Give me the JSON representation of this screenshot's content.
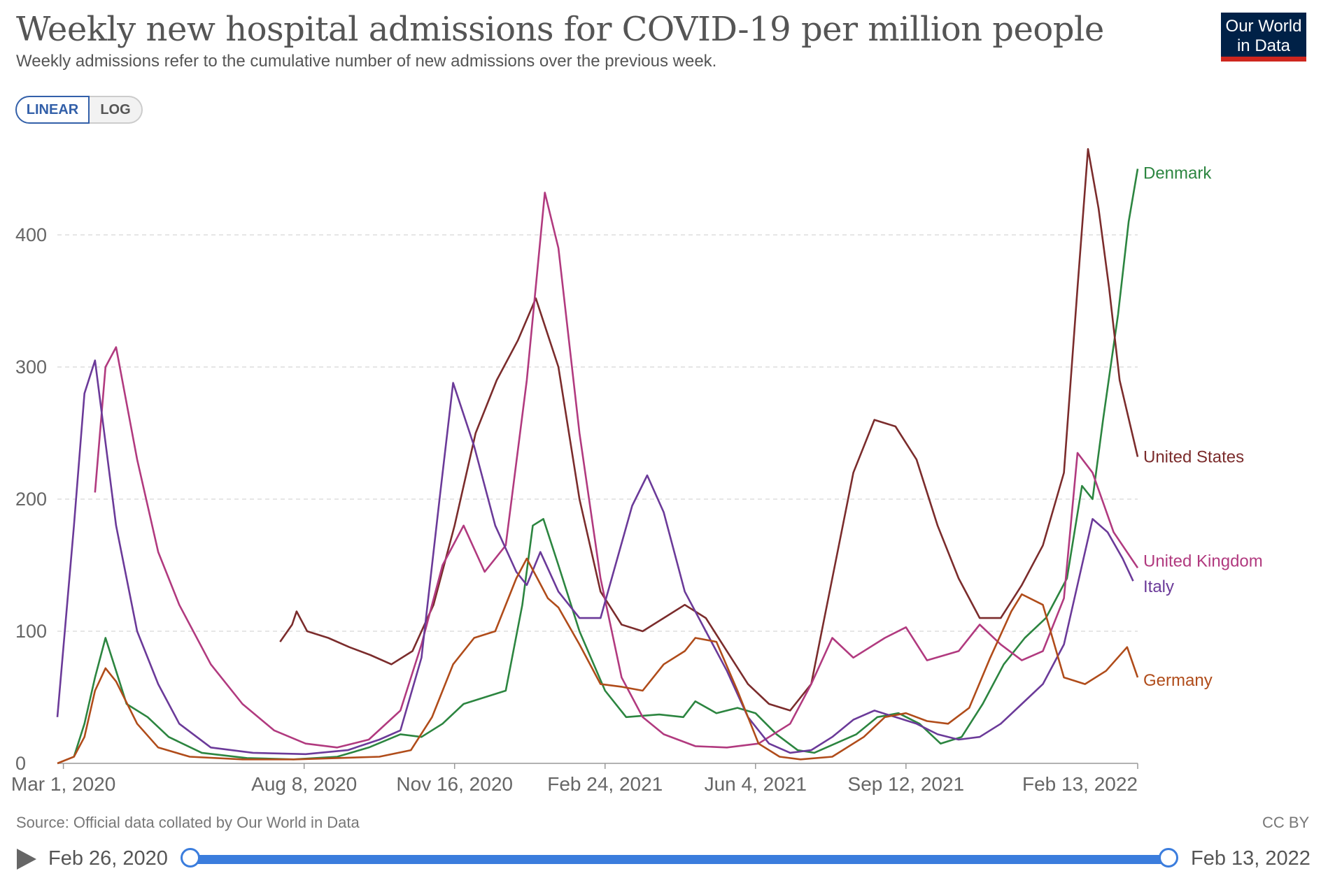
{
  "title": "Weekly new hospital admissions for COVID-19 per million people",
  "subtitle": "Weekly admissions refer to the cumulative number of new admissions over the previous week.",
  "logo": {
    "line1": "Our World",
    "line2": "in Data"
  },
  "scale_toggle": {
    "linear": "LINEAR",
    "log": "LOG",
    "selected": "LINEAR"
  },
  "source": "Source: Official data collated by Our World in Data",
  "license": "CC BY",
  "timeline": {
    "start": "Feb 26, 2020",
    "end": "Feb 13, 2022",
    "range_start": 0.0,
    "range_end": 1.0
  },
  "colors": {
    "grid": "#dddddd",
    "axis": "#999999",
    "tick_text": "#666666"
  },
  "chart_data": {
    "type": "line",
    "x_domain": [
      "2020-02-26",
      "2022-02-13"
    ],
    "ylim": [
      0,
      470
    ],
    "yticks": [
      0,
      100,
      200,
      300,
      400
    ],
    "xticks": [
      {
        "label": "Mar 1, 2020",
        "date": "2020-03-01"
      },
      {
        "label": "Aug 8, 2020",
        "date": "2020-08-08"
      },
      {
        "label": "Nov 16, 2020",
        "date": "2020-11-16"
      },
      {
        "label": "Feb 24, 2021",
        "date": "2021-02-24"
      },
      {
        "label": "Jun 4, 2021",
        "date": "2021-06-04"
      },
      {
        "label": "Sep 12, 2021",
        "date": "2021-09-12"
      },
      {
        "label": "Feb 13, 2022",
        "date": "2022-02-13"
      }
    ],
    "grid": true,
    "legend": "right (end labels)",
    "series": [
      {
        "name": "Denmark",
        "color": "#2c8540",
        "points": [
          [
            "2020-03-08",
            5
          ],
          [
            "2020-03-15",
            30
          ],
          [
            "2020-03-22",
            65
          ],
          [
            "2020-03-29",
            95
          ],
          [
            "2020-04-05",
            70
          ],
          [
            "2020-04-12",
            45
          ],
          [
            "2020-04-26",
            35
          ],
          [
            "2020-05-10",
            20
          ],
          [
            "2020-06-01",
            8
          ],
          [
            "2020-07-01",
            4
          ],
          [
            "2020-08-01",
            3
          ],
          [
            "2020-08-30",
            5
          ],
          [
            "2020-09-20",
            12
          ],
          [
            "2020-10-11",
            22
          ],
          [
            "2020-10-25",
            20
          ],
          [
            "2020-11-08",
            30
          ],
          [
            "2020-11-22",
            45
          ],
          [
            "2020-12-06",
            50
          ],
          [
            "2020-12-20",
            55
          ],
          [
            "2020-12-31",
            120
          ],
          [
            "2021-01-07",
            180
          ],
          [
            "2021-01-14",
            185
          ],
          [
            "2021-01-24",
            150
          ],
          [
            "2021-02-07",
            100
          ],
          [
            "2021-02-24",
            55
          ],
          [
            "2021-03-10",
            35
          ],
          [
            "2021-04-01",
            37
          ],
          [
            "2021-04-17",
            35
          ],
          [
            "2021-04-25",
            47
          ],
          [
            "2021-05-09",
            38
          ],
          [
            "2021-05-23",
            42
          ],
          [
            "2021-06-04",
            38
          ],
          [
            "2021-06-18",
            22
          ],
          [
            "2021-07-02",
            10
          ],
          [
            "2021-07-13",
            8
          ],
          [
            "2021-07-27",
            15
          ],
          [
            "2021-08-10",
            22
          ],
          [
            "2021-08-24",
            35
          ],
          [
            "2021-09-07",
            38
          ],
          [
            "2021-09-21",
            30
          ],
          [
            "2021-10-05",
            15
          ],
          [
            "2021-10-19",
            20
          ],
          [
            "2021-11-02",
            45
          ],
          [
            "2021-11-16",
            75
          ],
          [
            "2021-11-30",
            95
          ],
          [
            "2021-12-14",
            110
          ],
          [
            "2021-12-28",
            140
          ],
          [
            "2022-01-07",
            210
          ],
          [
            "2022-01-14",
            200
          ],
          [
            "2022-01-21",
            260
          ],
          [
            "2022-01-31",
            340
          ],
          [
            "2022-02-07",
            410
          ],
          [
            "2022-02-13",
            450
          ]
        ]
      },
      {
        "name": "United States",
        "color": "#7b2c2c",
        "points": [
          [
            "2020-07-23",
            92
          ],
          [
            "2020-07-31",
            105
          ],
          [
            "2020-08-03",
            115
          ],
          [
            "2020-08-10",
            100
          ],
          [
            "2020-08-24",
            95
          ],
          [
            "2020-09-07",
            88
          ],
          [
            "2020-09-21",
            82
          ],
          [
            "2020-10-05",
            75
          ],
          [
            "2020-10-19",
            85
          ],
          [
            "2020-11-02",
            120
          ],
          [
            "2020-11-16",
            180
          ],
          [
            "2020-11-30",
            250
          ],
          [
            "2020-12-14",
            290
          ],
          [
            "2020-12-28",
            320
          ],
          [
            "2021-01-09",
            352
          ],
          [
            "2021-01-24",
            300
          ],
          [
            "2021-02-07",
            200
          ],
          [
            "2021-02-21",
            130
          ],
          [
            "2021-03-07",
            105
          ],
          [
            "2021-03-21",
            100
          ],
          [
            "2021-04-04",
            110
          ],
          [
            "2021-04-18",
            120
          ],
          [
            "2021-05-02",
            110
          ],
          [
            "2021-05-16",
            85
          ],
          [
            "2021-05-30",
            60
          ],
          [
            "2021-06-13",
            45
          ],
          [
            "2021-06-27",
            40
          ],
          [
            "2021-07-11",
            60
          ],
          [
            "2021-07-25",
            140
          ],
          [
            "2021-08-08",
            220
          ],
          [
            "2021-08-22",
            260
          ],
          [
            "2021-09-05",
            255
          ],
          [
            "2021-09-19",
            230
          ],
          [
            "2021-10-03",
            180
          ],
          [
            "2021-10-17",
            140
          ],
          [
            "2021-10-31",
            110
          ],
          [
            "2021-11-14",
            110
          ],
          [
            "2021-11-28",
            135
          ],
          [
            "2021-12-12",
            165
          ],
          [
            "2021-12-26",
            220
          ],
          [
            "2022-01-04",
            360
          ],
          [
            "2022-01-11",
            465
          ],
          [
            "2022-01-18",
            420
          ],
          [
            "2022-01-25",
            360
          ],
          [
            "2022-02-01",
            290
          ],
          [
            "2022-02-13",
            232
          ]
        ]
      },
      {
        "name": "United Kingdom",
        "color": "#b13a7f",
        "points": [
          [
            "2020-03-22",
            205
          ],
          [
            "2020-03-29",
            300
          ],
          [
            "2020-04-05",
            315
          ],
          [
            "2020-04-19",
            230
          ],
          [
            "2020-05-03",
            160
          ],
          [
            "2020-05-17",
            120
          ],
          [
            "2020-06-07",
            75
          ],
          [
            "2020-06-28",
            45
          ],
          [
            "2020-07-19",
            25
          ],
          [
            "2020-08-09",
            15
          ],
          [
            "2020-08-30",
            12
          ],
          [
            "2020-09-20",
            18
          ],
          [
            "2020-10-11",
            40
          ],
          [
            "2020-10-25",
            90
          ],
          [
            "2020-11-08",
            150
          ],
          [
            "2020-11-22",
            180
          ],
          [
            "2020-12-06",
            145
          ],
          [
            "2020-12-20",
            165
          ],
          [
            "2021-01-03",
            290
          ],
          [
            "2021-01-15",
            432
          ],
          [
            "2021-01-24",
            390
          ],
          [
            "2021-02-07",
            250
          ],
          [
            "2021-02-21",
            140
          ],
          [
            "2021-03-07",
            65
          ],
          [
            "2021-03-21",
            35
          ],
          [
            "2021-04-04",
            22
          ],
          [
            "2021-04-25",
            13
          ],
          [
            "2021-05-16",
            12
          ],
          [
            "2021-06-06",
            15
          ],
          [
            "2021-06-27",
            30
          ],
          [
            "2021-07-11",
            60
          ],
          [
            "2021-07-25",
            95
          ],
          [
            "2021-08-08",
            80
          ],
          [
            "2021-08-29",
            95
          ],
          [
            "2021-09-12",
            103
          ],
          [
            "2021-09-26",
            78
          ],
          [
            "2021-10-17",
            85
          ],
          [
            "2021-10-31",
            105
          ],
          [
            "2021-11-14",
            90
          ],
          [
            "2021-11-28",
            78
          ],
          [
            "2021-12-12",
            85
          ],
          [
            "2021-12-26",
            125
          ],
          [
            "2022-01-04",
            235
          ],
          [
            "2022-01-14",
            220
          ],
          [
            "2022-01-28",
            175
          ],
          [
            "2022-02-13",
            148
          ]
        ]
      },
      {
        "name": "Italy",
        "color": "#6b3a99",
        "points": [
          [
            "2020-02-26",
            35
          ],
          [
            "2020-03-08",
            180
          ],
          [
            "2020-03-15",
            280
          ],
          [
            "2020-03-22",
            305
          ],
          [
            "2020-04-05",
            180
          ],
          [
            "2020-04-19",
            100
          ],
          [
            "2020-05-03",
            60
          ],
          [
            "2020-05-17",
            30
          ],
          [
            "2020-06-07",
            12
          ],
          [
            "2020-07-05",
            8
          ],
          [
            "2020-08-09",
            7
          ],
          [
            "2020-09-06",
            10
          ],
          [
            "2020-09-27",
            18
          ],
          [
            "2020-10-11",
            25
          ],
          [
            "2020-10-25",
            80
          ],
          [
            "2020-11-06",
            200
          ],
          [
            "2020-11-15",
            288
          ],
          [
            "2020-11-29",
            240
          ],
          [
            "2020-12-13",
            180
          ],
          [
            "2020-12-27",
            145
          ],
          [
            "2021-01-03",
            135
          ],
          [
            "2021-01-12",
            160
          ],
          [
            "2021-01-24",
            130
          ],
          [
            "2021-02-07",
            110
          ],
          [
            "2021-02-21",
            110
          ],
          [
            "2021-03-14",
            195
          ],
          [
            "2021-03-24",
            218
          ],
          [
            "2021-04-04",
            190
          ],
          [
            "2021-04-18",
            130
          ],
          [
            "2021-05-02",
            100
          ],
          [
            "2021-05-16",
            70
          ],
          [
            "2021-05-30",
            35
          ],
          [
            "2021-06-13",
            15
          ],
          [
            "2021-06-27",
            8
          ],
          [
            "2021-07-11",
            10
          ],
          [
            "2021-07-25",
            20
          ],
          [
            "2021-08-08",
            33
          ],
          [
            "2021-08-22",
            40
          ],
          [
            "2021-09-05",
            35
          ],
          [
            "2021-09-19",
            30
          ],
          [
            "2021-10-03",
            22
          ],
          [
            "2021-10-17",
            18
          ],
          [
            "2021-10-31",
            20
          ],
          [
            "2021-11-14",
            30
          ],
          [
            "2021-11-28",
            45
          ],
          [
            "2021-12-12",
            60
          ],
          [
            "2021-12-26",
            90
          ],
          [
            "2022-01-07",
            150
          ],
          [
            "2022-01-14",
            185
          ],
          [
            "2022-01-24",
            175
          ],
          [
            "2022-02-03",
            155
          ],
          [
            "2022-02-10",
            138
          ]
        ]
      },
      {
        "name": "Germany",
        "color": "#b04c1a",
        "points": [
          [
            "2020-02-26",
            0
          ],
          [
            "2020-03-08",
            5
          ],
          [
            "2020-03-15",
            20
          ],
          [
            "2020-03-22",
            55
          ],
          [
            "2020-03-29",
            72
          ],
          [
            "2020-04-05",
            62
          ],
          [
            "2020-04-19",
            30
          ],
          [
            "2020-05-03",
            12
          ],
          [
            "2020-05-24",
            5
          ],
          [
            "2020-06-28",
            3
          ],
          [
            "2020-08-02",
            3
          ],
          [
            "2020-08-30",
            4
          ],
          [
            "2020-09-27",
            5
          ],
          [
            "2020-10-18",
            10
          ],
          [
            "2020-11-01",
            35
          ],
          [
            "2020-11-15",
            75
          ],
          [
            "2020-11-29",
            95
          ],
          [
            "2020-12-13",
            100
          ],
          [
            "2020-12-27",
            140
          ],
          [
            "2021-01-03",
            155
          ],
          [
            "2021-01-10",
            140
          ],
          [
            "2021-01-17",
            125
          ],
          [
            "2021-01-24",
            118
          ],
          [
            "2021-02-07",
            90
          ],
          [
            "2021-02-21",
            60
          ],
          [
            "2021-03-07",
            58
          ],
          [
            "2021-03-21",
            55
          ],
          [
            "2021-04-04",
            75
          ],
          [
            "2021-04-18",
            85
          ],
          [
            "2021-04-25",
            95
          ],
          [
            "2021-05-09",
            92
          ],
          [
            "2021-05-23",
            55
          ],
          [
            "2021-06-06",
            15
          ],
          [
            "2021-06-20",
            5
          ],
          [
            "2021-07-04",
            3
          ],
          [
            "2021-07-25",
            5
          ],
          [
            "2021-08-15",
            20
          ],
          [
            "2021-08-29",
            35
          ],
          [
            "2021-09-12",
            38
          ],
          [
            "2021-09-26",
            32
          ],
          [
            "2021-10-10",
            30
          ],
          [
            "2021-10-24",
            42
          ],
          [
            "2021-11-07",
            80
          ],
          [
            "2021-11-21",
            115
          ],
          [
            "2021-11-28",
            128
          ],
          [
            "2021-12-12",
            120
          ],
          [
            "2021-12-26",
            65
          ],
          [
            "2022-01-09",
            60
          ],
          [
            "2022-01-23",
            70
          ],
          [
            "2022-02-06",
            88
          ],
          [
            "2022-02-13",
            65
          ]
        ]
      }
    ]
  }
}
